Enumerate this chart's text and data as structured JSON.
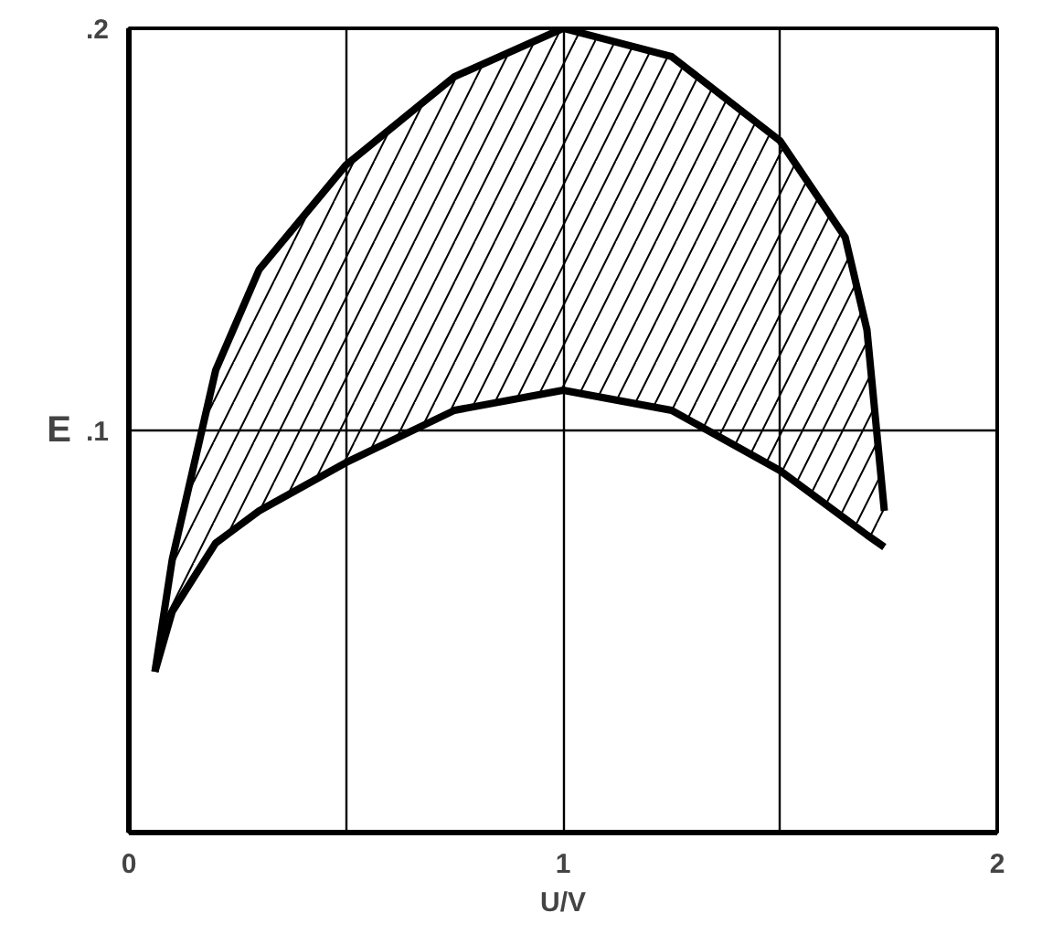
{
  "chart_data": {
    "type": "line",
    "xlabel": "U/V",
    "ylabel": "E",
    "xlim": [
      0,
      2
    ],
    "ylim": [
      0,
      0.2
    ],
    "xticks": [
      0,
      {
        "value": 0.5,
        "label": null
      },
      1,
      {
        "value": 1.5,
        "label": null
      },
      2
    ],
    "yticks": [
      {
        "value": 0.1,
        "label": ".1"
      },
      {
        "value": 0.2,
        "label": ".2"
      }
    ],
    "grid": true,
    "series": [
      {
        "type": "area",
        "color": "#000000",
        "x": [
          0.06,
          0.1,
          0.2,
          0.3,
          0.5,
          0.75,
          1.0,
          1.25,
          1.5,
          1.65,
          1.7,
          1.74
        ],
        "values": [
          0.04,
          0.068,
          0.115,
          0.14,
          0.166,
          0.188,
          0.2,
          0.193,
          0.172,
          0.148,
          0.125,
          0.08
        ]
      },
      {
        "color": "#000000",
        "x": [
          0.06,
          0.1,
          0.2,
          0.3,
          0.5,
          0.75,
          1.0,
          1.25,
          1.5,
          1.65,
          1.7,
          1.74
        ],
        "values": [
          0.04,
          0.055,
          0.072,
          0.08,
          0.092,
          0.105,
          0.11,
          0.105,
          0.09,
          0.078,
          0.074,
          0.071
        ]
      }
    ]
  }
}
